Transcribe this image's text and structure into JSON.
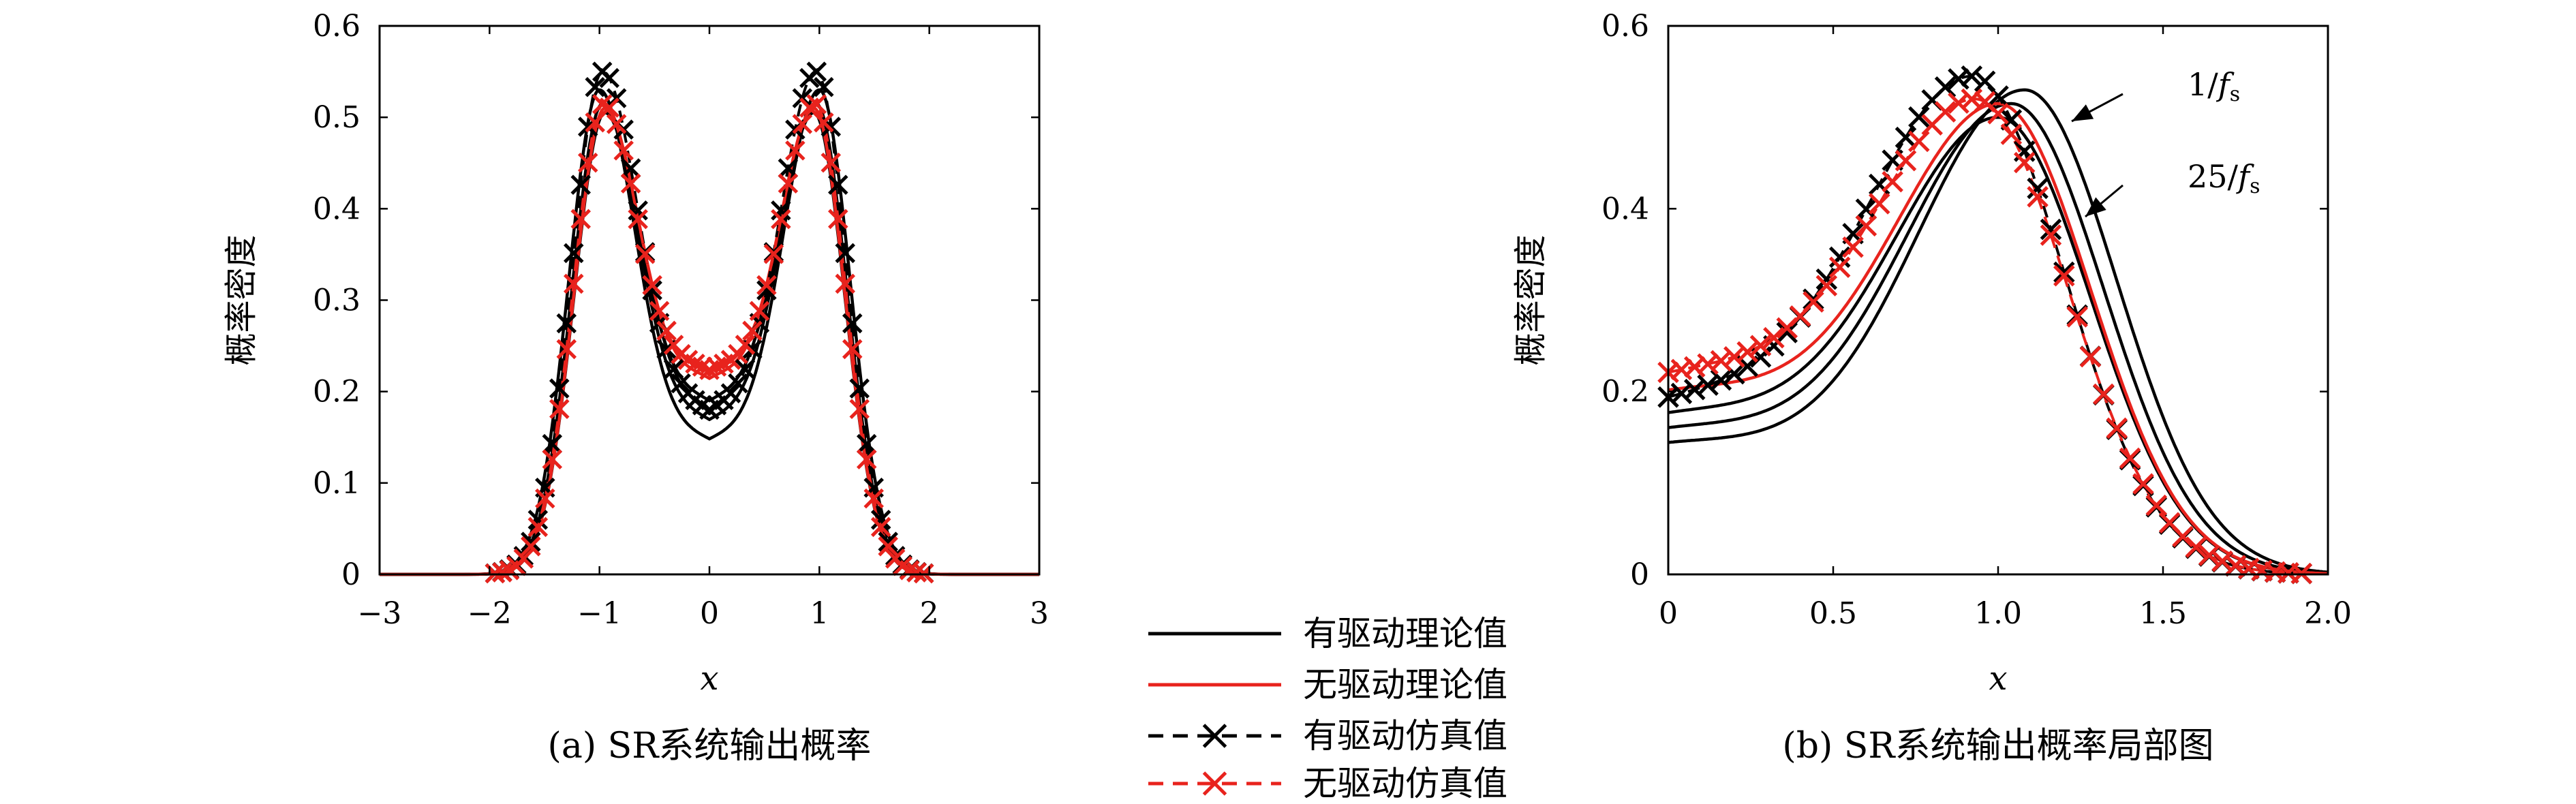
{
  "chart_data": [
    {
      "type": "line",
      "caption": "(a) SR系统输出概率",
      "xlabel": "x",
      "ylabel": "概率密度",
      "xlim": [
        -3,
        3
      ],
      "ylim": [
        0,
        0.6
      ],
      "xticks": [
        "−3",
        "−2",
        "−1",
        "0",
        "1",
        "2",
        "3"
      ],
      "yticks": [
        "0",
        "0.1",
        "0.2",
        "0.3",
        "0.4",
        "0.5",
        "0.6"
      ],
      "grid": false,
      "series": [
        {
          "name": "有驱动理论值",
          "style": "solid",
          "color": "#000000",
          "marker": "none",
          "curves": [
            {
              "peak": 0.53,
              "center": 0.14
            },
            {
              "peak": 0.515,
              "center": 0.16
            },
            {
              "peak": 0.505,
              "center": 0.18
            }
          ]
        },
        {
          "name": "无驱动理论值",
          "style": "solid",
          "color": "#e8231d",
          "marker": "none",
          "curves": [
            {
              "peak": 0.51,
              "center": 0.205
            }
          ]
        },
        {
          "name": "有驱动仿真值",
          "style": "dashed",
          "color": "#000000",
          "marker": "x",
          "curves": [
            {
              "peak": 0.55,
              "center": 0.17
            }
          ]
        },
        {
          "name": "无驱动仿真值",
          "style": "dashed",
          "color": "#e8231d",
          "marker": "x",
          "curves": [
            {
              "peak": 0.515,
              "center": 0.215
            }
          ]
        }
      ]
    },
    {
      "type": "line",
      "caption": "(b) SR系统输出概率局部图",
      "xlabel": "x",
      "ylabel": "概率密度",
      "xlim": [
        0,
        2.0
      ],
      "ylim": [
        0.0,
        0.6
      ],
      "xticks": [
        "0",
        "0.5",
        "1.0",
        "1.5",
        "2.0"
      ],
      "yticks": [
        "0",
        "0.2",
        "0.4",
        "0.6"
      ],
      "grid": false,
      "annotations": [
        {
          "text": "1/",
          "italic": "f",
          "sub": "s",
          "points_to": "outermost black curve peak"
        },
        {
          "text": "25/",
          "italic": "f",
          "sub": "s",
          "points_to": "innermost black curve"
        }
      ]
    }
  ],
  "legend": {
    "placement": "bottom-center",
    "entries": [
      "有驱动理论值",
      "无驱动理论值",
      "有驱动仿真值",
      "无驱动仿真值"
    ]
  },
  "colors": {
    "black": "#000000",
    "red": "#e8231d"
  }
}
